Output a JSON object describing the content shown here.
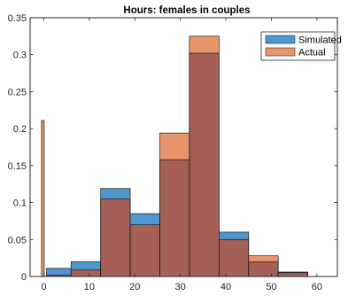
{
  "chart_data": {
    "type": "bar",
    "title": "Hours: females in couples",
    "xlabel": "",
    "ylabel": "",
    "xlim": [
      -3,
      64.5
    ],
    "ylim": [
      0,
      0.35
    ],
    "x_ticks": [
      0,
      10,
      20,
      30,
      40,
      50,
      60
    ],
    "y_ticks": [
      0,
      0.05,
      0.1,
      0.15,
      0.2,
      0.25,
      0.3,
      0.35
    ],
    "y_tick_labels": [
      "0",
      "0.05",
      "0.1",
      "0.15",
      "0.2",
      "0.25",
      "0.3",
      "0.35"
    ],
    "x_tick_labels": [
      "0",
      "10",
      "20",
      "30",
      "40",
      "50",
      "60"
    ],
    "grid": false,
    "legend_position": "top-right",
    "overlap_color": "#a56157",
    "series": [
      {
        "name": "Simulated",
        "color": "#4f97cf",
        "bins": [
          {
            "x0": 0.6,
            "x1": 6.0,
            "value": 0.011
          },
          {
            "x0": 6.0,
            "x1": 12.5,
            "value": 0.02
          },
          {
            "x0": 12.5,
            "x1": 19.0,
            "value": 0.119
          },
          {
            "x0": 19.0,
            "x1": 25.5,
            "value": 0.085
          },
          {
            "x0": 25.5,
            "x1": 32.0,
            "value": 0.158
          },
          {
            "x0": 32.0,
            "x1": 38.5,
            "value": 0.302
          },
          {
            "x0": 38.5,
            "x1": 45.0,
            "value": 0.06
          },
          {
            "x0": 45.0,
            "x1": 51.5,
            "value": 0.02
          },
          {
            "x0": 51.5,
            "x1": 58.0,
            "value": 0.006
          }
        ]
      },
      {
        "name": "Actual",
        "color": "#e9956b",
        "bins": [
          {
            "x0": -0.5,
            "x1": 0.1,
            "value": 0.211
          },
          {
            "x0": 0.6,
            "x1": 6.0,
            "value": 0.002
          },
          {
            "x0": 6.0,
            "x1": 12.5,
            "value": 0.009
          },
          {
            "x0": 12.5,
            "x1": 19.0,
            "value": 0.105
          },
          {
            "x0": 19.0,
            "x1": 25.5,
            "value": 0.07
          },
          {
            "x0": 25.5,
            "x1": 32.0,
            "value": 0.194
          },
          {
            "x0": 32.0,
            "x1": 38.5,
            "value": 0.325
          },
          {
            "x0": 38.5,
            "x1": 45.0,
            "value": 0.05
          },
          {
            "x0": 45.0,
            "x1": 51.5,
            "value": 0.028
          },
          {
            "x0": 51.5,
            "x1": 58.0,
            "value": 0.005
          }
        ]
      }
    ]
  }
}
